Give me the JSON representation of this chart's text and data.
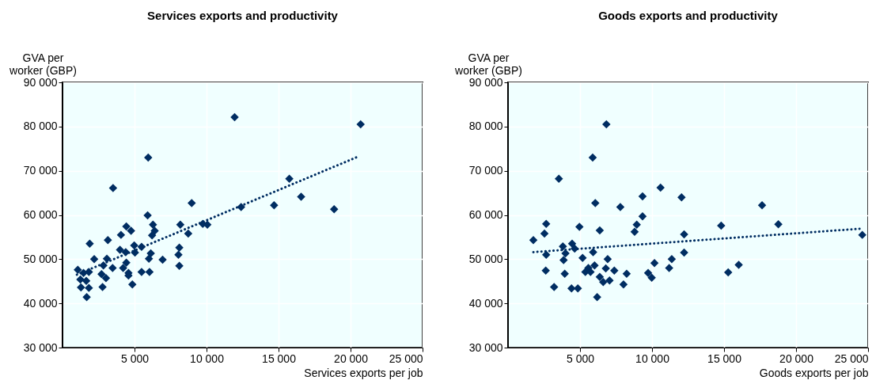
{
  "chart_data": [
    {
      "type": "scatter",
      "title": "Services exports and productivity",
      "xlabel": "Services exports per job",
      "ylabel": "GVA per\nworker (GBP)",
      "xlim": [
        0,
        25000
      ],
      "ylim": [
        30000,
        90000
      ],
      "xticks": [
        {
          "value": 5000,
          "label": "5 000"
        },
        {
          "value": 10000,
          "label": "10 000"
        },
        {
          "value": 15000,
          "label": "15 000"
        },
        {
          "value": 20000,
          "label": "20 000"
        },
        {
          "value": 25000,
          "label": "25 000"
        }
      ],
      "yticks": [
        {
          "value": 30000,
          "label": "30 000"
        },
        {
          "value": 40000,
          "label": "40 000"
        },
        {
          "value": 50000,
          "label": "50 000"
        },
        {
          "value": 60000,
          "label": "60 000"
        },
        {
          "value": 70000,
          "label": "70 000"
        },
        {
          "value": 80000,
          "label": "80 000"
        },
        {
          "value": 90000,
          "label": "90 000"
        }
      ],
      "grid": true,
      "series": [
        {
          "color": "#002d62",
          "marker": "diamond",
          "x": [
            11950,
            5950,
            3510,
            8970,
            12400,
            5910,
            6280,
            6400,
            6220,
            8180,
            8730,
            9740,
            10060,
            4430,
            4760,
            4060,
            1890,
            3150,
            3990,
            4390,
            4980,
            5490,
            5030,
            6130,
            6000,
            6950,
            8110,
            8050,
            8110,
            2200,
            3080,
            2840,
            3480,
            4210,
            4430,
            4580,
            4850,
            1060,
            1830,
            1460,
            2710,
            3020,
            1240,
            1650,
            1280,
            1830,
            2780,
            1680,
            5490,
            6040,
            4580,
            20700,
            14690,
            15750,
            16570,
            18860
          ],
          "values": [
            82100,
            73000,
            66100,
            62700,
            61800,
            59900,
            57800,
            56400,
            55400,
            57800,
            55800,
            58000,
            57800,
            57400,
            56400,
            55500,
            53500,
            54300,
            52100,
            51600,
            53100,
            52800,
            51500,
            51300,
            50100,
            49900,
            52600,
            51000,
            48500,
            50000,
            50100,
            48600,
            48000,
            48000,
            49200,
            46900,
            44300,
            47600,
            47100,
            46900,
            46600,
            45700,
            45400,
            45100,
            43600,
            43500,
            43700,
            41400,
            47100,
            47100,
            46300,
            80500,
            62200,
            68200,
            64100,
            61300
          ]
        },
        {
          "type": "line",
          "line_style": "dotted",
          "color": "#002d62",
          "x": [
            1000,
            20600
          ],
          "values": [
            46500,
            73300
          ]
        }
      ]
    },
    {
      "type": "scatter",
      "title": "Goods exports and productivity",
      "xlabel": "Goods exports per job",
      "ylabel": "GVA per\nworker (GBP)",
      "xlim": [
        0,
        25000
      ],
      "ylim": [
        30000,
        90000
      ],
      "xticks": [
        {
          "value": 5000,
          "label": "5 000"
        },
        {
          "value": 10000,
          "label": "10 000"
        },
        {
          "value": 15000,
          "label": "15 000"
        },
        {
          "value": 20000,
          "label": "20 000"
        },
        {
          "value": 25000,
          "label": "25 000"
        }
      ],
      "yticks": [
        {
          "value": 30000,
          "label": "30 000"
        },
        {
          "value": 40000,
          "label": "40 000"
        },
        {
          "value": 50000,
          "label": "50 000"
        },
        {
          "value": 60000,
          "label": "60 000"
        },
        {
          "value": 70000,
          "label": "70 000"
        },
        {
          "value": 80000,
          "label": "80 000"
        },
        {
          "value": 90000,
          "label": "90 000"
        }
      ],
      "grid": true,
      "series": [
        {
          "color": "#002d62",
          "marker": "diamond",
          "x": [
            6830,
            5880,
            3530,
            10590,
            9340,
            12050,
            6060,
            7800,
            9340,
            2650,
            4960,
            8940,
            8790,
            2530,
            6370,
            1760,
            12230,
            4450,
            3810,
            4630,
            5910,
            2650,
            3990,
            3860,
            5180,
            6920,
            12230,
            11370,
            10170,
            11190,
            2620,
            3940,
            5370,
            6010,
            6790,
            7380,
            6370,
            6610,
            7050,
            8240,
            9730,
            9980,
            3200,
            4410,
            4850,
            8020,
            6190,
            5580,
            5730,
            14800,
            17640,
            18770,
            16020,
            15290,
            24600
          ],
          "values": [
            80500,
            73000,
            68200,
            66200,
            64200,
            64000,
            62700,
            61800,
            59700,
            58000,
            57300,
            57800,
            56200,
            55800,
            56500,
            54300,
            55600,
            53500,
            52900,
            52400,
            51600,
            51000,
            51300,
            49800,
            50300,
            50000,
            51500,
            50000,
            49100,
            48000,
            47400,
            46700,
            47100,
            48600,
            47900,
            47400,
            46000,
            44800,
            45200,
            46700,
            46900,
            45800,
            43700,
            43400,
            43400,
            44300,
            41400,
            48000,
            47100,
            57600,
            62200,
            57900,
            48700,
            47000,
            55500
          ]
        },
        {
          "type": "line",
          "line_style": "dotted",
          "color": "#002d62",
          "x": [
            1760,
            24500
          ],
          "values": [
            51600,
            56900
          ]
        }
      ]
    }
  ]
}
